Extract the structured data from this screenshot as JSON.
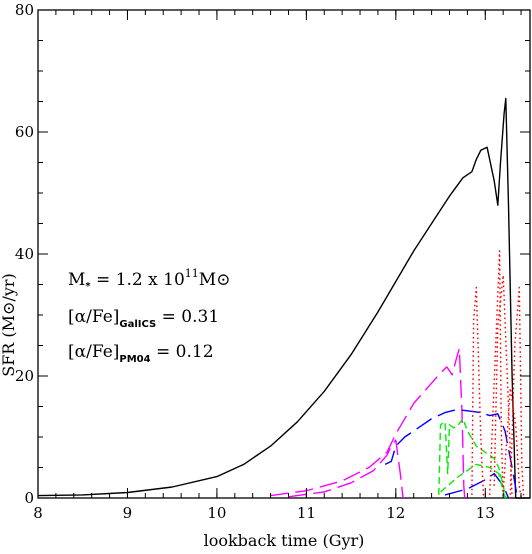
{
  "chart_data": {
    "type": "line",
    "xlabel": "lookback time (Gyr)",
    "ylabel": "SFR  (M⊙/yr)",
    "xlim": [
      8,
      13.5
    ],
    "ylim": [
      0,
      80
    ],
    "x_ticks": [
      8,
      9,
      10,
      11,
      12,
      13
    ],
    "y_ticks": [
      0,
      20,
      40,
      60,
      80
    ],
    "x_tick_labels": [
      "8",
      "9",
      "10",
      "11",
      "12",
      "13"
    ],
    "y_tick_labels": [
      "0",
      "20",
      "40",
      "60",
      "80"
    ],
    "grid": false,
    "annotations": {
      "mass": {
        "text": "M",
        "sub": "*",
        "rest": " = 1.2 x 10",
        "sup": "11",
        "tail": "M⊙"
      },
      "galics": {
        "pre": "[α/Fe]",
        "sub": "GalICS",
        "post": " = 0.31"
      },
      "pm04": {
        "pre": "[α/Fe]",
        "sub": "PM04",
        "post": " = 0.12"
      }
    },
    "series": [
      {
        "color": "#000000",
        "dash": "solid",
        "segments": [
          [
            [
              8.0,
              0.4
            ],
            [
              8.5,
              0.5
            ],
            [
              9.0,
              0.9
            ],
            [
              9.5,
              1.8
            ],
            [
              10.0,
              3.5
            ],
            [
              10.3,
              5.5
            ],
            [
              10.6,
              8.5
            ],
            [
              10.9,
              12.5
            ],
            [
              11.2,
              17.5
            ],
            [
              11.5,
              23.5
            ],
            [
              11.8,
              30.5
            ],
            [
              12.0,
              35.5
            ],
            [
              12.2,
              40.5
            ],
            [
              12.4,
              45.0
            ],
            [
              12.6,
              49.5
            ],
            [
              12.75,
              52.5
            ],
            [
              12.85,
              53.5
            ],
            [
              12.9,
              55.5
            ],
            [
              12.95,
              57.0
            ],
            [
              13.02,
              57.5
            ],
            [
              13.1,
              52.0
            ],
            [
              13.14,
              48.0
            ],
            [
              13.17,
              55.0
            ],
            [
              13.21,
              63.0
            ],
            [
              13.23,
              65.5
            ],
            [
              13.26,
              48.0
            ],
            [
              13.3,
              20.0
            ],
            [
              13.34,
              0.0
            ],
            [
              13.5,
              0.0
            ]
          ]
        ]
      },
      {
        "color": "#ff00ff",
        "dash": "longdash",
        "segments": [
          [
            [
              10.6,
              0.4
            ],
            [
              11.0,
              1.2
            ],
            [
              11.4,
              2.8
            ],
            [
              11.7,
              5.0
            ],
            [
              11.9,
              7.5
            ],
            [
              12.0,
              10.5
            ],
            [
              12.1,
              13.0
            ],
            [
              12.2,
              15.5
            ],
            [
              12.35,
              18.0
            ],
            [
              12.5,
              20.5
            ],
            [
              12.57,
              21.5
            ],
            [
              12.63,
              20.2
            ],
            [
              12.67,
              22.5
            ],
            [
              12.71,
              24.5
            ],
            [
              12.74,
              14.0
            ],
            [
              12.76,
              2.0
            ],
            [
              12.77,
              0.0
            ]
          ],
          [
            [
              10.8,
              0.2
            ],
            [
              11.2,
              1.0
            ],
            [
              11.5,
              2.5
            ],
            [
              11.75,
              4.5
            ],
            [
              11.9,
              7.0
            ],
            [
              11.95,
              8.5
            ],
            [
              12.0,
              9.5
            ],
            [
              12.05,
              4.0
            ],
            [
              12.08,
              0.0
            ]
          ]
        ]
      },
      {
        "color": "#0000ff",
        "dash": "longdash",
        "segments": [
          [
            [
              11.88,
              5.5
            ],
            [
              11.95,
              6.0
            ],
            [
              12.0,
              8.5
            ],
            [
              12.1,
              10.0
            ],
            [
              12.25,
              11.5
            ],
            [
              12.4,
              13.0
            ],
            [
              12.55,
              14.0
            ],
            [
              12.68,
              14.5
            ],
            [
              12.8,
              14.3
            ],
            [
              12.95,
              14.0
            ],
            [
              13.05,
              13.5
            ],
            [
              13.14,
              13.8
            ],
            [
              13.22,
              11.0
            ],
            [
              13.3,
              5.0
            ],
            [
              13.36,
              0.0
            ]
          ],
          [
            [
              12.55,
              0.5
            ],
            [
              12.8,
              1.5
            ],
            [
              13.0,
              3.0
            ],
            [
              13.1,
              4.0
            ],
            [
              13.2,
              2.0
            ],
            [
              13.26,
              0.0
            ]
          ]
        ]
      },
      {
        "color": "#00ee00",
        "dash": "shortdash",
        "segments": [
          [
            [
              12.48,
              0.5
            ],
            [
              12.5,
              12.0
            ],
            [
              12.55,
              12.5
            ],
            [
              12.58,
              4.0
            ],
            [
              12.6,
              12.0
            ],
            [
              12.65,
              11.5
            ],
            [
              12.7,
              12.0
            ],
            [
              12.75,
              13.0
            ],
            [
              12.8,
              11.0
            ],
            [
              12.9,
              8.5
            ],
            [
              13.0,
              7.5
            ],
            [
              13.1,
              6.5
            ],
            [
              13.15,
              5.0
            ],
            [
              13.2,
              2.0
            ],
            [
              13.23,
              0.0
            ]
          ],
          [
            [
              12.5,
              1.0
            ],
            [
              12.7,
              3.5
            ],
            [
              12.9,
              5.5
            ],
            [
              13.05,
              5.0
            ],
            [
              13.15,
              4.0
            ],
            [
              13.22,
              0.0
            ]
          ]
        ]
      },
      {
        "color": "#ff0000",
        "dash": "dotted",
        "segments": [
          [
            [
              12.85,
              0.5
            ],
            [
              12.87,
              29.0
            ],
            [
              12.9,
              34.5
            ],
            [
              12.95,
              10.0
            ],
            [
              12.98,
              0.0
            ]
          ],
          [
            [
              13.05,
              0.5
            ],
            [
              13.1,
              19.0
            ],
            [
              13.16,
              40.5
            ],
            [
              13.18,
              10.0
            ],
            [
              13.2,
              0.0
            ]
          ],
          [
            [
              13.1,
              2.0
            ],
            [
              13.14,
              28.0
            ],
            [
              13.2,
              36.5
            ],
            [
              13.26,
              15.0
            ],
            [
              13.3,
              0.0
            ]
          ],
          [
            [
              13.28,
              0.5
            ],
            [
              13.33,
              25.0
            ],
            [
              13.38,
              34.5
            ],
            [
              13.41,
              5.0
            ],
            [
              13.43,
              0.0
            ]
          ],
          [
            [
              13.2,
              1.0
            ],
            [
              13.28,
              18.0
            ],
            [
              13.34,
              12.0
            ],
            [
              13.38,
              2.0
            ],
            [
              13.4,
              0.0
            ]
          ]
        ]
      }
    ]
  }
}
